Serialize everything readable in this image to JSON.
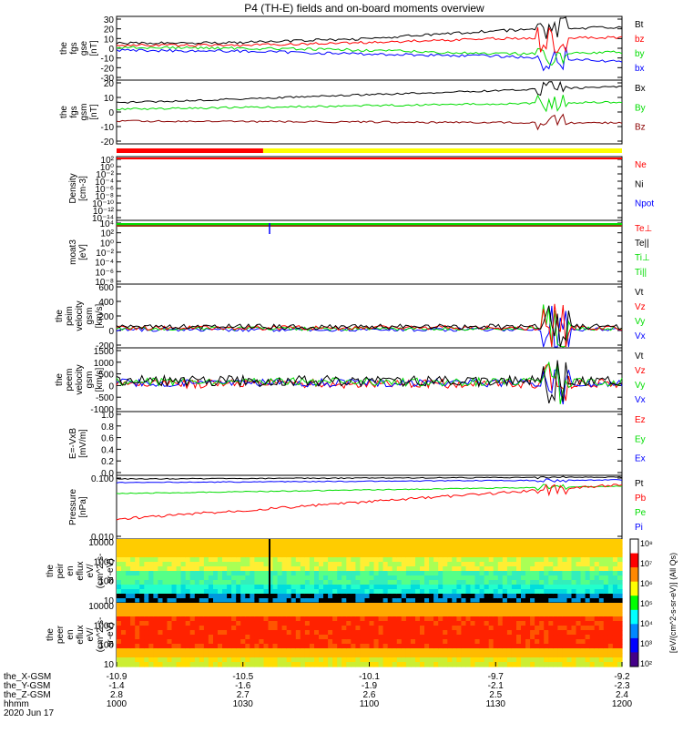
{
  "title": "P4 (TH-E) fields and on-board moments overview",
  "date_label": "2020 Jun 17",
  "colors": {
    "black": "#000000",
    "red": "#ff0000",
    "green": "#00dd00",
    "blue": "#0000ff",
    "darkred": "#8b0000",
    "yellow": "#ffff00"
  },
  "status_bar": {
    "red_until_fraction": 0.29
  },
  "panels": [
    {
      "id": "fgs-gse",
      "ylabel": [
        "the",
        "fgs",
        "gse",
        "[nT]"
      ],
      "yticks": [
        "30",
        "20",
        "10",
        "0",
        "-10",
        "-20",
        "-30"
      ],
      "legend": [
        {
          "t": "Bt",
          "c": "black"
        },
        {
          "t": "bz",
          "c": "red"
        },
        {
          "t": "by",
          "c": "green"
        },
        {
          "t": "bx",
          "c": "blue"
        }
      ]
    },
    {
      "id": "fgs-gsm",
      "ylabel": [
        "the",
        "fgs",
        "gsm",
        "[nT]"
      ],
      "yticks": [
        "20",
        "10",
        "0",
        "-10",
        "-20"
      ],
      "legend": [
        {
          "t": "Bx",
          "c": "black"
        },
        {
          "t": "By",
          "c": "green"
        },
        {
          "t": "Bz",
          "c": "darkred"
        }
      ]
    },
    {
      "id": "density",
      "ylabel": [
        "Density",
        "[cm-3]"
      ],
      "yticks": [
        "10²",
        "10⁰",
        "10⁻²",
        "10⁻⁴",
        "10⁻⁶",
        "10⁻⁸",
        "10⁻¹⁰",
        "10⁻¹²",
        "10⁻¹⁴"
      ],
      "legend": [
        {
          "t": "Ne",
          "c": "red"
        },
        {
          "t": "Ni",
          "c": "black"
        },
        {
          "t": "Npot",
          "c": "blue"
        }
      ]
    },
    {
      "id": "temperature",
      "ylabel": [
        "moat3",
        "[eV]"
      ],
      "yticks": [
        "10⁴",
        "10²",
        "10⁰",
        "10⁻²",
        "10⁻⁴",
        "10⁻⁶",
        "10⁻⁸"
      ],
      "legend": [
        {
          "t": "Te⊥",
          "c": "red"
        },
        {
          "t": "Te||",
          "c": "black"
        },
        {
          "t": "Ti⊥",
          "c": "green"
        },
        {
          "t": "Ti||",
          "c": "green"
        }
      ]
    },
    {
      "id": "peim-velocity",
      "ylabel": [
        "the",
        "peim",
        "velocity",
        "gsm",
        "[km/s]"
      ],
      "yticks": [
        "600",
        "400",
        "200",
        "0",
        "-200"
      ],
      "legend": [
        {
          "t": "Vt",
          "c": "black"
        },
        {
          "t": "Vz",
          "c": "red"
        },
        {
          "t": "Vy",
          "c": "green"
        },
        {
          "t": "Vx",
          "c": "blue"
        }
      ]
    },
    {
      "id": "peem-velocity",
      "ylabel": [
        "the",
        "peem",
        "velocity",
        "gsm",
        "[km/s]"
      ],
      "yticks": [
        "1500",
        "1000",
        "500",
        "0",
        "-500",
        "-1000"
      ],
      "legend": [
        {
          "t": "Vt",
          "c": "black"
        },
        {
          "t": "Vz",
          "c": "red"
        },
        {
          "t": "Vy",
          "c": "green"
        },
        {
          "t": "Vx",
          "c": "blue"
        }
      ]
    },
    {
      "id": "efield",
      "ylabel": [
        "E=-VxB",
        "[mV/m]"
      ],
      "yticks": [
        "1.0",
        "0.8",
        "0.6",
        "0.4",
        "0.2",
        "0.0"
      ],
      "legend": [
        {
          "t": "Ez",
          "c": "red"
        },
        {
          "t": "Ey",
          "c": "green"
        },
        {
          "t": "Ex",
          "c": "blue"
        }
      ]
    },
    {
      "id": "pressure",
      "ylabel": [
        "Pressure",
        "[nPa]"
      ],
      "yticks": [
        "0.100",
        "0.010"
      ],
      "legend": [
        {
          "t": "Pt",
          "c": "black"
        },
        {
          "t": "Pb",
          "c": "red"
        },
        {
          "t": "Pe",
          "c": "green"
        },
        {
          "t": "Pi",
          "c": "blue"
        }
      ]
    },
    {
      "id": "peir-spec",
      "ylabel": [
        "the",
        "peir",
        "en",
        "eflux",
        "eV/",
        "(cm^2-s-",
        "sr-eV)"
      ],
      "yticks": [
        "10000",
        "1000",
        "100",
        "10"
      ],
      "legend": []
    },
    {
      "id": "peer-spec",
      "ylabel": [
        "the",
        "peer",
        "en",
        "eflux",
        "eV/",
        "(cm^2-s-",
        "sr-eV)"
      ],
      "yticks": [
        "10000",
        "1000",
        "100",
        "10"
      ],
      "legend": []
    }
  ],
  "colorbar": {
    "labels": [
      "10⁸",
      "10⁷",
      "10⁶",
      "10⁵",
      "10⁴",
      "10³",
      "10²"
    ],
    "units": "[eV/(cm^2-s-sr-eV)] (All Qs)"
  },
  "xaxis": {
    "rows": [
      {
        "name": "the_X-GSM",
        "values": [
          "-10.9",
          "-10.5",
          "-10.1",
          "-9.7",
          "-9.2"
        ]
      },
      {
        "name": "the_Y-GSM",
        "values": [
          "-1.4",
          "-1.6",
          "-1.9",
          "-2.1",
          "-2.3"
        ]
      },
      {
        "name": "the_Z-GSM",
        "values": [
          "2.8",
          "2.7",
          "2.6",
          "2.5",
          "2.4"
        ]
      },
      {
        "name": "hhmm",
        "values": [
          "1000",
          "1030",
          "1100",
          "1130",
          "1200"
        ]
      }
    ]
  },
  "chart_data": {
    "type": "line",
    "title": "P4 (TH-E) fields and on-board moments overview",
    "x": [
      "1000",
      "1030",
      "1100",
      "1130",
      "1200"
    ],
    "series": [
      {
        "name": "Bt",
        "values": [
          5,
          6,
          10,
          18,
          22
        ]
      },
      {
        "name": "bz",
        "values": [
          3,
          3,
          6,
          10,
          11
        ]
      },
      {
        "name": "by",
        "values": [
          1,
          0,
          -2,
          -6,
          -4
        ]
      },
      {
        "name": "bx",
        "values": [
          -2,
          -3,
          -6,
          -8,
          -14
        ]
      },
      {
        "name": "Pt",
        "values": [
          0.18,
          0.2,
          0.22,
          0.25,
          0.27
        ]
      },
      {
        "name": "Pb",
        "values": [
          0.011,
          0.013,
          0.02,
          0.06,
          0.15
        ]
      },
      {
        "name": "Pe",
        "values": [
          0.06,
          0.08,
          0.09,
          0.1,
          0.12
        ]
      },
      {
        "name": "Pi",
        "values": [
          0.15,
          0.18,
          0.2,
          0.22,
          0.24
        ]
      }
    ]
  }
}
